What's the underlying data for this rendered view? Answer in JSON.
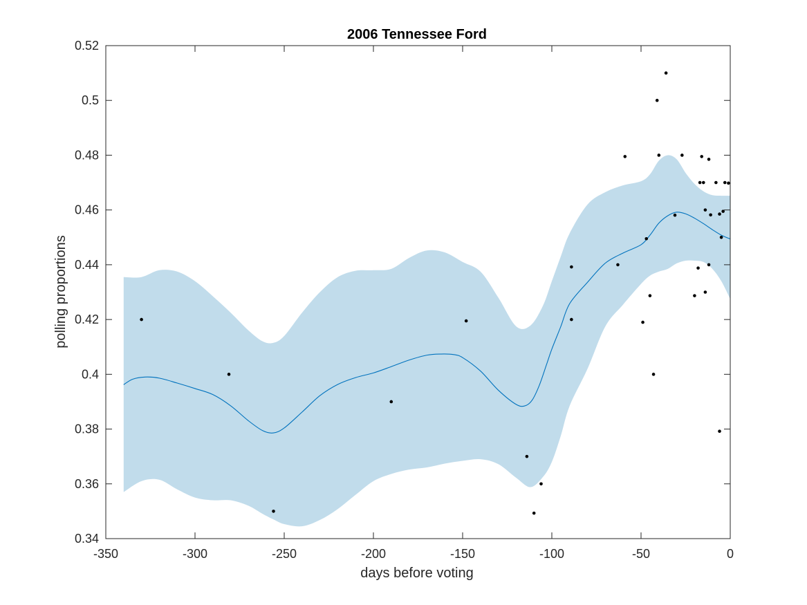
{
  "chart_data": {
    "type": "line",
    "title": "2006 Tennessee Ford",
    "xlabel": "days before voting",
    "ylabel": "polling proportions",
    "xlim": [
      -350,
      0
    ],
    "ylim": [
      0.34,
      0.52
    ],
    "xticks": [
      -350,
      -300,
      -250,
      -200,
      -150,
      -100,
      -50,
      0
    ],
    "xtick_labels": [
      "-350",
      "-300",
      "-250",
      "-200",
      "-150",
      "-100",
      "-50",
      "0"
    ],
    "yticks": [
      0.34,
      0.36,
      0.38,
      0.4,
      0.42,
      0.44,
      0.46,
      0.48,
      0.5,
      0.52
    ],
    "ytick_labels": [
      "0.34",
      "0.36",
      "0.38",
      "0.4",
      "0.42",
      "0.44",
      "0.46",
      "0.48",
      "0.5",
      "0.52"
    ],
    "grid": false,
    "colors": {
      "band": "#c1dceb",
      "line": "#0072bd",
      "points": "#000000",
      "axes": "#262626"
    },
    "band": {
      "x": [
        -340,
        -330,
        -320,
        -310,
        -300,
        -290,
        -280,
        -270,
        -262,
        -256,
        -250,
        -240,
        -230,
        -220,
        -210,
        -200,
        -190,
        -180,
        -170,
        -160,
        -150,
        -140,
        -130,
        -120,
        -112,
        -105,
        -100,
        -95,
        -90,
        -80,
        -70,
        -60,
        -50,
        -45,
        -40,
        -35,
        -30,
        -25,
        -20,
        -15,
        -10,
        -5,
        0
      ],
      "upper": [
        0.4355,
        0.4355,
        0.438,
        0.4375,
        0.434,
        0.4285,
        0.4225,
        0.416,
        0.412,
        0.4115,
        0.414,
        0.4225,
        0.43,
        0.4355,
        0.4378,
        0.438,
        0.4385,
        0.4425,
        0.4452,
        0.4445,
        0.441,
        0.4375,
        0.428,
        0.4175,
        0.4178,
        0.425,
        0.434,
        0.443,
        0.4515,
        0.462,
        0.4665,
        0.469,
        0.4705,
        0.473,
        0.478,
        0.48,
        0.4785,
        0.4735,
        0.4695,
        0.4668,
        0.4654,
        0.4652,
        0.4652
      ],
      "lower": [
        0.357,
        0.361,
        0.3615,
        0.358,
        0.355,
        0.354,
        0.354,
        0.352,
        0.349,
        0.347,
        0.3453,
        0.3445,
        0.3468,
        0.3508,
        0.356,
        0.361,
        0.3636,
        0.3652,
        0.366,
        0.3674,
        0.3684,
        0.369,
        0.3672,
        0.3622,
        0.3588,
        0.3625,
        0.368,
        0.3775,
        0.3885,
        0.402,
        0.4175,
        0.4255,
        0.433,
        0.436,
        0.4375,
        0.4385,
        0.4405,
        0.4415,
        0.4415,
        0.441,
        0.4385,
        0.434,
        0.4275
      ]
    },
    "series": [
      {
        "x": [
          -340,
          -335,
          -328,
          -320,
          -310,
          -300,
          -290,
          -280,
          -270,
          -262,
          -256,
          -250,
          -240,
          -230,
          -220,
          -210,
          -200,
          -190,
          -180,
          -170,
          -162,
          -155,
          -150,
          -140,
          -130,
          -120,
          -115,
          -111,
          -107,
          -103,
          -100,
          -95,
          -90,
          -80,
          -70,
          -60,
          -50,
          -45,
          -40,
          -35,
          -30,
          -25,
          -20,
          -15,
          -10,
          -5,
          0
        ],
        "y": [
          0.3962,
          0.3982,
          0.399,
          0.3986,
          0.3968,
          0.3948,
          0.3926,
          0.3885,
          0.383,
          0.3794,
          0.3786,
          0.3804,
          0.3862,
          0.3922,
          0.3963,
          0.3988,
          0.4005,
          0.4028,
          0.4052,
          0.407,
          0.4074,
          0.4072,
          0.4061,
          0.4012,
          0.3942,
          0.389,
          0.3885,
          0.3906,
          0.396,
          0.4035,
          0.4092,
          0.4174,
          0.4258,
          0.4336,
          0.4406,
          0.4443,
          0.4473,
          0.4508,
          0.4552,
          0.4579,
          0.4592,
          0.4586,
          0.457,
          0.455,
          0.4528,
          0.4508,
          0.4494
        ]
      }
    ],
    "points": [
      {
        "x": -330,
        "y": 0.42
      },
      {
        "x": -281,
        "y": 0.4
      },
      {
        "x": -256,
        "y": 0.35
      },
      {
        "x": -190,
        "y": 0.39
      },
      {
        "x": -148,
        "y": 0.4195
      },
      {
        "x": -114,
        "y": 0.37
      },
      {
        "x": -110,
        "y": 0.3493
      },
      {
        "x": -106,
        "y": 0.36
      },
      {
        "x": -89,
        "y": 0.4392
      },
      {
        "x": -89,
        "y": 0.42
      },
      {
        "x": -63,
        "y": 0.44
      },
      {
        "x": -59,
        "y": 0.4795
      },
      {
        "x": -49,
        "y": 0.419
      },
      {
        "x": -47,
        "y": 0.4495
      },
      {
        "x": -45,
        "y": 0.4287
      },
      {
        "x": -43,
        "y": 0.4
      },
      {
        "x": -41,
        "y": 0.5
      },
      {
        "x": -40,
        "y": 0.48
      },
      {
        "x": -36,
        "y": 0.51
      },
      {
        "x": -31,
        "y": 0.4581
      },
      {
        "x": -27,
        "y": 0.48
      },
      {
        "x": -20,
        "y": 0.4287
      },
      {
        "x": -18,
        "y": 0.4388
      },
      {
        "x": -17,
        "y": 0.47
      },
      {
        "x": -16,
        "y": 0.4795
      },
      {
        "x": -15,
        "y": 0.47
      },
      {
        "x": -14,
        "y": 0.43
      },
      {
        "x": -14,
        "y": 0.46
      },
      {
        "x": -12,
        "y": 0.4785
      },
      {
        "x": -12,
        "y": 0.44
      },
      {
        "x": -11,
        "y": 0.4582
      },
      {
        "x": -8,
        "y": 0.47
      },
      {
        "x": -6,
        "y": 0.4585
      },
      {
        "x": -6,
        "y": 0.3792
      },
      {
        "x": -5,
        "y": 0.45
      },
      {
        "x": -4,
        "y": 0.4595
      },
      {
        "x": -3,
        "y": 0.47
      },
      {
        "x": -1,
        "y": 0.4698
      }
    ]
  }
}
